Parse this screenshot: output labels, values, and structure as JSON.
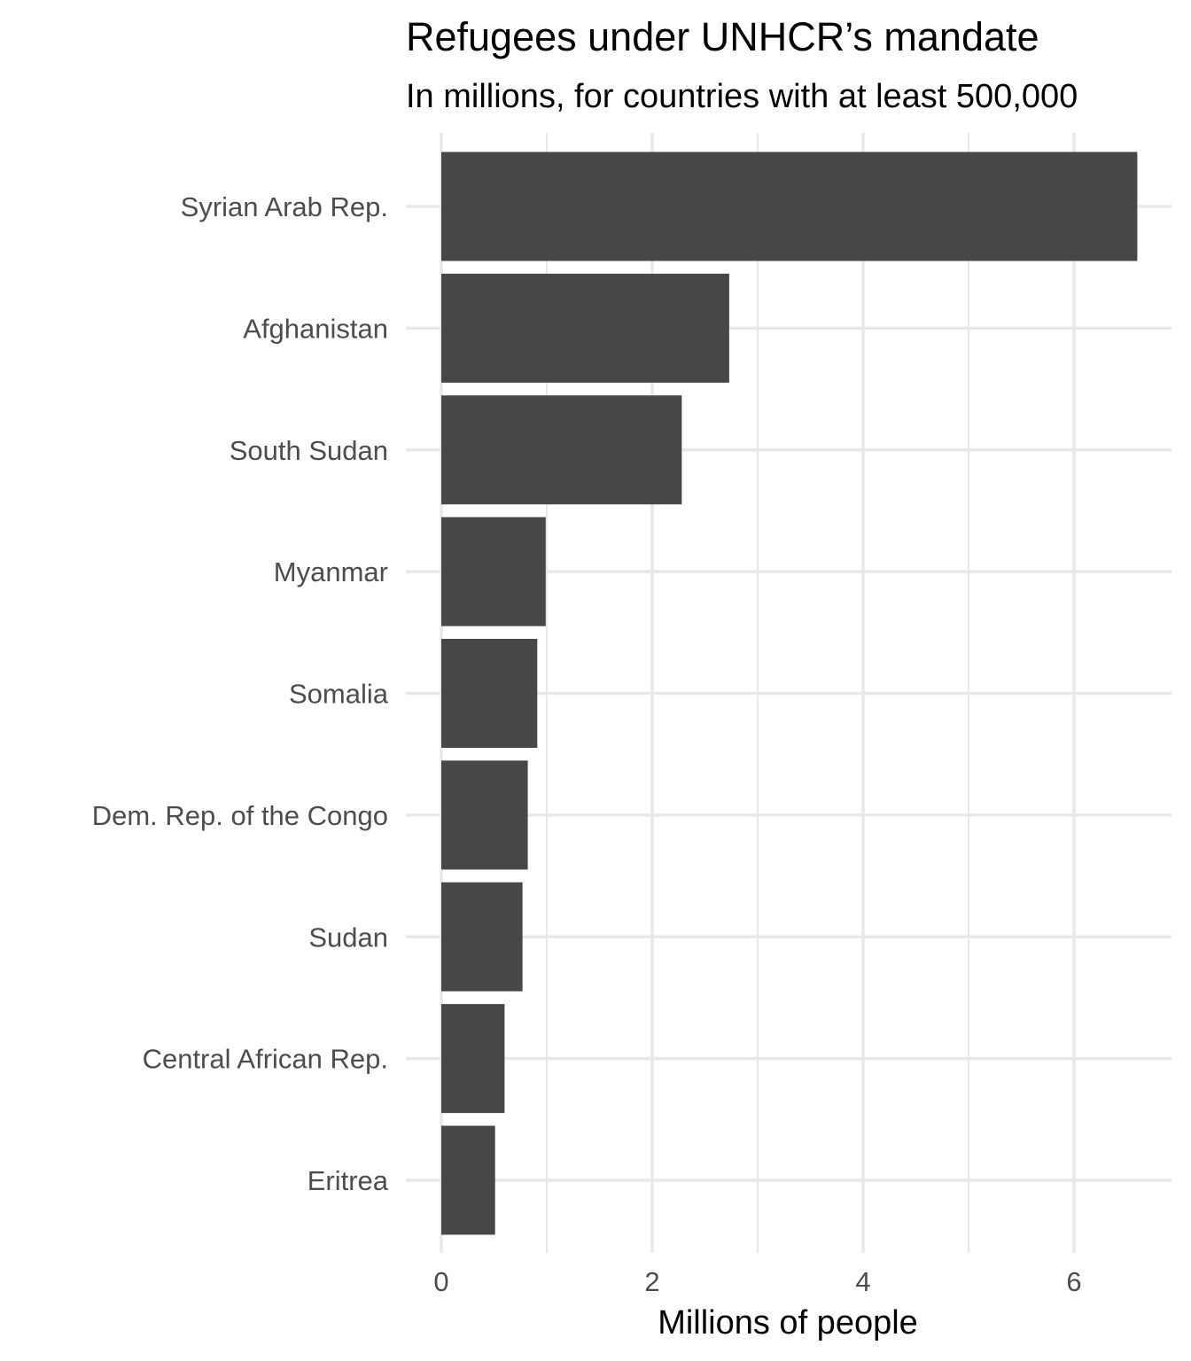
{
  "chart_data": {
    "type": "bar",
    "orientation": "horizontal",
    "title": "Refugees under UNHCR’s mandate",
    "subtitle": "In millions, for countries with at least 500,000",
    "xlabel": "Millions of people",
    "ylabel": "",
    "xlim": [
      0,
      6.9
    ],
    "x_ticks": [
      0,
      2,
      4,
      6
    ],
    "grid": true,
    "categories": [
      "Syrian Arab Rep.",
      "Afghanistan",
      "South Sudan",
      "Myanmar",
      "Somalia",
      "Dem. Rep. of the Congo",
      "Sudan",
      "Central African Rep.",
      "Eritrea"
    ],
    "values": [
      6.6,
      2.73,
      2.28,
      0.99,
      0.91,
      0.82,
      0.77,
      0.6,
      0.51
    ],
    "colors": {
      "bar": "#474747",
      "grid": "#e8e8e8",
      "label": "#4d4d4d",
      "title": "#000000"
    }
  }
}
